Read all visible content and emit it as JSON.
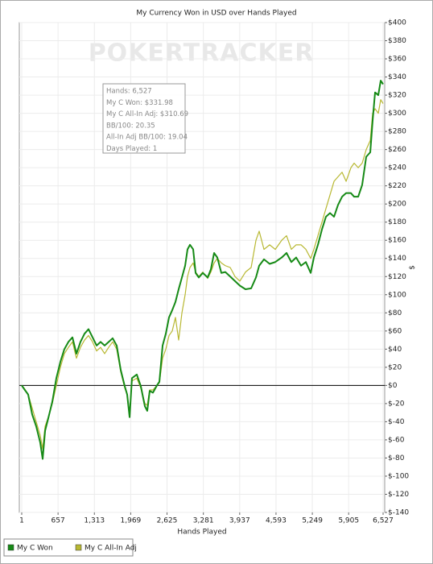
{
  "chart_data": {
    "type": "line",
    "title": "My Currency Won in USD over Hands Played",
    "watermark": "POKERTRACKER",
    "xlabel": "Hands Played",
    "ylabel": "$",
    "xlim": [
      1,
      6527
    ],
    "ylim": [
      -140,
      400
    ],
    "grid": true,
    "legend": "bottom-left",
    "xticks": [
      1,
      657,
      {
        "value": 1313,
        "label": "1,313"
      },
      {
        "value": 1969,
        "label": "1,969"
      },
      {
        "value": 2625,
        "label": "2,625"
      },
      {
        "value": 3281,
        "label": "3,281"
      },
      {
        "value": 3937,
        "label": "3,937"
      },
      {
        "value": 4593,
        "label": "4,593"
      },
      {
        "value": 5249,
        "label": "5,249"
      },
      {
        "value": 5905,
        "label": "5,905"
      },
      {
        "value": 6527,
        "label": "6,527"
      }
    ],
    "yticks": [
      {
        "value": 400,
        "label": "$400"
      },
      {
        "value": 380,
        "label": "$380"
      },
      {
        "value": 360,
        "label": "$360"
      },
      {
        "value": 340,
        "label": "$340"
      },
      {
        "value": 320,
        "label": "$320"
      },
      {
        "value": 300,
        "label": "$300"
      },
      {
        "value": 280,
        "label": "$280"
      },
      {
        "value": 260,
        "label": "$260"
      },
      {
        "value": 240,
        "label": "$240"
      },
      {
        "value": 220,
        "label": "$220"
      },
      {
        "value": 200,
        "label": "$200"
      },
      {
        "value": 180,
        "label": "$180"
      },
      {
        "value": 160,
        "label": "$160"
      },
      {
        "value": 140,
        "label": "$140"
      },
      {
        "value": 120,
        "label": "$120"
      },
      {
        "value": 100,
        "label": "$100"
      },
      {
        "value": 80,
        "label": "$80"
      },
      {
        "value": 60,
        "label": "$60"
      },
      {
        "value": 40,
        "label": "$40"
      },
      {
        "value": 20,
        "label": "$20"
      },
      {
        "value": 0,
        "label": "$0"
      },
      {
        "value": -20,
        "label": "$-20"
      },
      {
        "value": -40,
        "label": "$-40"
      },
      {
        "value": -60,
        "label": "$-60"
      },
      {
        "value": -80,
        "label": "$-80"
      },
      {
        "value": -100,
        "label": "$-100"
      },
      {
        "value": -120,
        "label": "$-120"
      },
      {
        "value": -140,
        "label": "$-140"
      }
    ],
    "x": [
      1,
      45,
      117,
      190,
      262,
      335,
      379,
      423,
      481,
      553,
      626,
      699,
      771,
      844,
      917,
      989,
      1062,
      1135,
      1207,
      1280,
      1353,
      1425,
      1498,
      1571,
      1643,
      1716,
      1789,
      1862,
      1905,
      1949,
      1992,
      2079,
      2152,
      2225,
      2268,
      2312,
      2370,
      2443,
      2487,
      2545,
      2603,
      2661,
      2719,
      2777,
      2835,
      2894,
      2952,
      2995,
      3039,
      3097,
      3141,
      3199,
      3271,
      3359,
      3417,
      3475,
      3533,
      3606,
      3678,
      3766,
      3853,
      3940,
      4042,
      4144,
      4231,
      4289,
      4376,
      4478,
      4580,
      4696,
      4783,
      4870,
      4957,
      5045,
      5132,
      5219,
      5277,
      5350,
      5423,
      5495,
      5568,
      5641,
      5713,
      5786,
      5859,
      5946,
      6004,
      6077,
      6149,
      6222,
      6295,
      6338,
      6382,
      6440,
      6484,
      6527
    ],
    "series": [
      {
        "name": "My C All-In Adj",
        "color": "#b8b832",
        "values": [
          0,
          -3,
          -10,
          -25,
          -40,
          -55,
          -70,
          -45,
          -35,
          -20,
          0,
          20,
          35,
          42,
          48,
          30,
          42,
          50,
          55,
          48,
          38,
          42,
          35,
          42,
          48,
          40,
          15,
          -3,
          -10,
          -30,
          5,
          8,
          -3,
          -20,
          -22,
          -5,
          -5,
          0,
          3,
          30,
          40,
          55,
          60,
          75,
          50,
          80,
          100,
          120,
          130,
          135,
          125,
          120,
          125,
          118,
          125,
          135,
          140,
          135,
          132,
          130,
          120,
          115,
          125,
          130,
          160,
          170,
          150,
          155,
          150,
          160,
          165,
          150,
          155,
          155,
          150,
          140,
          150,
          165,
          180,
          195,
          210,
          225,
          230,
          235,
          225,
          240,
          245,
          240,
          245,
          260,
          270,
          300,
          305,
          300,
          315,
          310.69
        ]
      },
      {
        "name": "My C Won",
        "color": "#168a16",
        "values": [
          0,
          -4,
          -10,
          -32,
          -45,
          -63,
          -81,
          -50,
          -36,
          -18,
          8,
          26,
          40,
          48,
          53,
          35,
          48,
          57,
          62,
          53,
          44,
          48,
          44,
          48,
          52,
          44,
          17,
          -1,
          -10,
          -35,
          8,
          12,
          -1,
          -23,
          -28,
          -6,
          -8,
          0,
          4,
          44,
          57,
          75,
          83,
          92,
          106,
          119,
          132,
          150,
          155,
          150,
          124,
          119,
          124,
          119,
          128,
          146,
          141,
          124,
          125,
          120,
          115,
          110,
          106,
          107,
          119,
          132,
          139,
          134,
          136,
          141,
          146,
          136,
          141,
          132,
          136,
          124,
          141,
          155,
          172,
          186,
          190,
          186,
          199,
          208,
          212,
          212,
          208,
          208,
          221,
          252,
          257,
          292,
          323,
          320,
          336,
          331.98
        ]
      }
    ],
    "tooltip": [
      "Hands: 6,527",
      "My C Won: $331.98",
      "My C All-In Adj: $310.69",
      "BB/100: 20.35",
      "All-In Adj BB/100: 19.04",
      "Days Played: 1"
    ]
  }
}
